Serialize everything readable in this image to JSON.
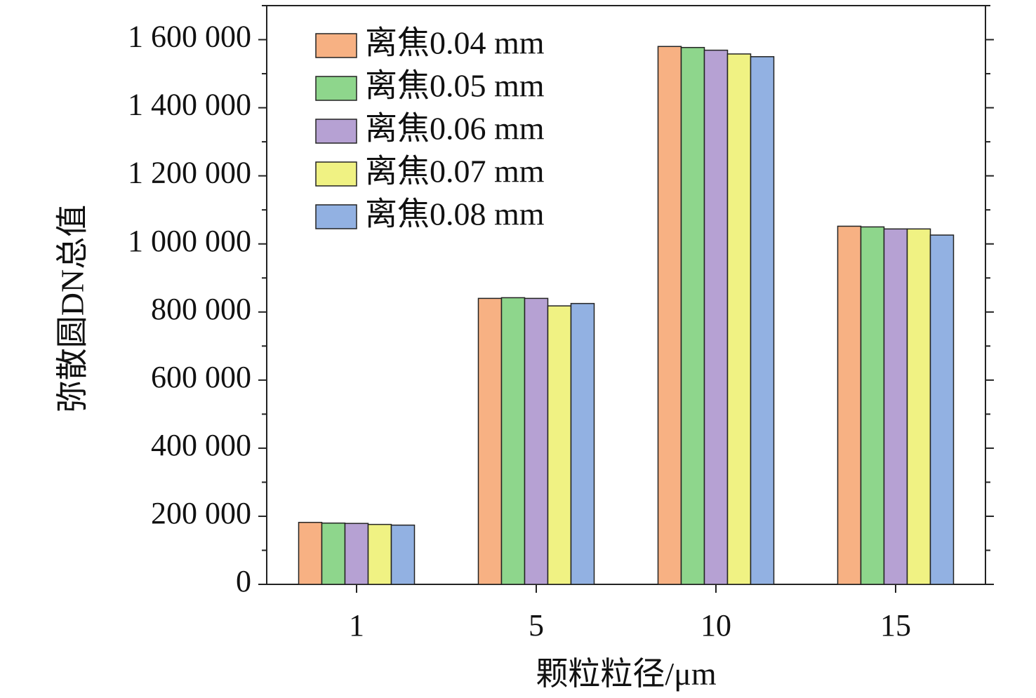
{
  "chart_data": {
    "type": "bar",
    "xlabel": "颗粒粒径/μm",
    "ylabel": "弥散圆DN总值",
    "categories": [
      "1",
      "5",
      "10",
      "15"
    ],
    "ylim": [
      0,
      1700000
    ],
    "yticks": [
      0,
      200000,
      400000,
      600000,
      800000,
      1000000,
      1200000,
      1400000,
      1600000
    ],
    "ytick_labels": [
      "0",
      "200 000",
      "400 000",
      "600 000",
      "800 000",
      "1 000 000",
      "1 200 000",
      "1 400 000",
      "1 600 000"
    ],
    "legend_position": "top-left",
    "grid": false,
    "series": [
      {
        "name": "离焦0.04 mm",
        "color": "#F7B183",
        "values": [
          182000,
          840000,
          1580000,
          1052000
        ]
      },
      {
        "name": "离焦0.05 mm",
        "color": "#8ED68C",
        "values": [
          180000,
          842000,
          1577000,
          1050000
        ]
      },
      {
        "name": "离焦0.06 mm",
        "color": "#B6A1D3",
        "values": [
          179000,
          840000,
          1569000,
          1044000
        ]
      },
      {
        "name": "离焦0.07 mm",
        "color": "#F0F283",
        "values": [
          176000,
          818000,
          1558000,
          1044000
        ]
      },
      {
        "name": "离焦0.08 mm",
        "color": "#92B1E2",
        "values": [
          174000,
          825000,
          1550000,
          1026000
        ]
      }
    ]
  }
}
